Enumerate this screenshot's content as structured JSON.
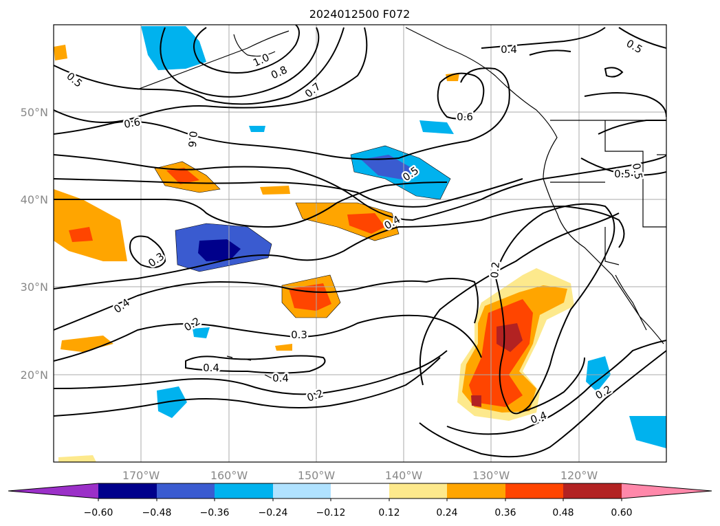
{
  "map": {
    "title": "2024012500 F072",
    "lat_labels": [
      "50°N",
      "40°N",
      "30°N",
      "20°N"
    ],
    "lon_labels": [
      "170°W",
      "160°W",
      "150°W",
      "140°W",
      "130°W",
      "120°W"
    ],
    "contour_labels": [
      "0.5",
      "1.0",
      "0.8",
      "0.7",
      "0.4",
      "0.5",
      "0.6",
      "0.6",
      "0.6",
      "0.5",
      "0.5",
      "0.4",
      "0.3",
      "0.2",
      "0.4",
      "0.2",
      "0.3",
      "0.4",
      "0.4",
      "0.2",
      "0.4",
      "0.2",
      "0.5"
    ]
  },
  "colorbar": {
    "ticks": [
      "−0.60",
      "−0.48",
      "−0.36",
      "−0.24",
      "−0.12",
      "0.12",
      "0.24",
      "0.36",
      "0.48",
      "0.60"
    ],
    "colors": [
      "#9b30c8",
      "#00008b",
      "#3a5bd0",
      "#00b2ee",
      "#b0e2ff",
      "#ffffff",
      "#fde98c",
      "#ffa500",
      "#ff4500",
      "#b22222",
      "#ff88aa"
    ]
  },
  "palette": {
    "coast": "#000000",
    "grid": "#aaaaaa",
    "contour": "#000000"
  }
}
